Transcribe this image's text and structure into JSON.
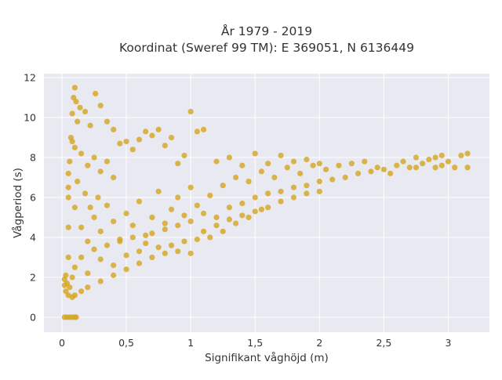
{
  "chart_data": {
    "type": "scatter",
    "title_line1": "År 1979 - 2019",
    "title_line2": "Koordinat (Sweref 99 TM): E 369051, N 6136449",
    "xlabel": "Signifikant våghöjd (m)",
    "ylabel": "Vågperiod (s)",
    "xlim": [
      -0.14,
      3.32
    ],
    "ylim": [
      -0.75,
      12.2
    ],
    "x_ticks": [
      0,
      0.5,
      1,
      1.5,
      2,
      2.5,
      3
    ],
    "x_tick_labels": [
      "0",
      "0,5",
      "1",
      "1,5",
      "2",
      "2,5",
      "3"
    ],
    "y_ticks": [
      0,
      2,
      4,
      6,
      8,
      10,
      12
    ],
    "y_tick_labels": [
      "0",
      "2",
      "4",
      "6",
      "8",
      "10",
      "12"
    ],
    "grid": true,
    "colors": {
      "background": "#e9e9f1",
      "grid": "#ffffff",
      "marker": "#d4a51f"
    },
    "series": [
      {
        "points": [
          [
            0.02,
            0
          ],
          [
            0.04,
            0
          ],
          [
            0.06,
            0
          ],
          [
            0.08,
            0
          ],
          [
            0.1,
            0
          ],
          [
            0.11,
            0
          ],
          [
            0.02,
            1.6
          ],
          [
            0.03,
            1.3
          ],
          [
            0.05,
            1.1
          ],
          [
            0.08,
            1.0
          ],
          [
            0.1,
            1.1
          ],
          [
            0.15,
            1.3
          ],
          [
            0.2,
            1.5
          ],
          [
            0.3,
            1.8
          ],
          [
            0.4,
            2.1
          ],
          [
            0.5,
            2.4
          ],
          [
            0.6,
            2.7
          ],
          [
            0.7,
            3.0
          ],
          [
            0.8,
            3.2
          ],
          [
            0.9,
            3.3
          ],
          [
            1.0,
            3.2
          ],
          [
            0.05,
            6.5
          ],
          [
            0.06,
            7.8
          ],
          [
            0.07,
            9.0
          ],
          [
            0.08,
            10.2
          ],
          [
            0.09,
            11.0
          ],
          [
            0.1,
            11.5
          ],
          [
            0.11,
            10.8
          ],
          [
            0.12,
            9.8
          ],
          [
            0.14,
            10.5
          ],
          [
            0.18,
            10.3
          ],
          [
            0.22,
            9.6
          ],
          [
            0.26,
            11.2
          ],
          [
            0.3,
            10.6
          ],
          [
            0.35,
            9.8
          ],
          [
            0.4,
            9.4
          ],
          [
            0.1,
            8.5
          ],
          [
            0.15,
            8.2
          ],
          [
            0.2,
            7.6
          ],
          [
            0.25,
            8.0
          ],
          [
            0.3,
            7.3
          ],
          [
            0.35,
            7.8
          ],
          [
            0.4,
            7.0
          ],
          [
            0.45,
            8.7
          ],
          [
            0.5,
            8.8
          ],
          [
            0.55,
            8.4
          ],
          [
            0.6,
            8.9
          ],
          [
            0.65,
            9.3
          ],
          [
            0.7,
            9.1
          ],
          [
            0.75,
            9.4
          ],
          [
            0.8,
            8.6
          ],
          [
            0.85,
            9.0
          ],
          [
            0.9,
            7.7
          ],
          [
            0.95,
            8.1
          ],
          [
            1.0,
            10.3
          ],
          [
            1.05,
            9.3
          ],
          [
            1.1,
            9.4
          ],
          [
            0.1,
            5.5
          ],
          [
            0.15,
            4.5
          ],
          [
            0.2,
            3.8
          ],
          [
            0.25,
            5.0
          ],
          [
            0.3,
            4.3
          ],
          [
            0.35,
            5.6
          ],
          [
            0.4,
            4.8
          ],
          [
            0.45,
            3.9
          ],
          [
            0.5,
            5.2
          ],
          [
            0.55,
            4.6
          ],
          [
            0.6,
            5.8
          ],
          [
            0.65,
            4.1
          ],
          [
            0.7,
            5.0
          ],
          [
            0.75,
            6.3
          ],
          [
            0.8,
            4.7
          ],
          [
            0.85,
            5.4
          ],
          [
            0.9,
            6.0
          ],
          [
            0.95,
            5.1
          ],
          [
            1.0,
            6.5
          ],
          [
            1.05,
            5.6
          ],
          [
            0.1,
            2.5
          ],
          [
            0.15,
            3.0
          ],
          [
            0.2,
            2.2
          ],
          [
            0.25,
            3.4
          ],
          [
            0.3,
            2.9
          ],
          [
            0.35,
            3.6
          ],
          [
            0.4,
            2.6
          ],
          [
            0.45,
            3.8
          ],
          [
            0.5,
            3.1
          ],
          [
            0.55,
            4.0
          ],
          [
            0.6,
            3.3
          ],
          [
            0.65,
            3.7
          ],
          [
            0.7,
            4.2
          ],
          [
            0.75,
            3.5
          ],
          [
            0.8,
            4.4
          ],
          [
            0.85,
            3.6
          ],
          [
            0.9,
            4.6
          ],
          [
            0.95,
            3.8
          ],
          [
            1.0,
            4.8
          ],
          [
            1.05,
            3.9
          ],
          [
            1.1,
            5.2
          ],
          [
            1.15,
            6.1
          ],
          [
            1.2,
            5.0
          ],
          [
            1.25,
            6.6
          ],
          [
            1.3,
            5.5
          ],
          [
            1.35,
            7.0
          ],
          [
            1.4,
            5.7
          ],
          [
            1.45,
            6.8
          ],
          [
            1.5,
            6.0
          ],
          [
            1.55,
            7.3
          ],
          [
            1.6,
            6.2
          ],
          [
            1.65,
            7.0
          ],
          [
            1.7,
            6.3
          ],
          [
            1.75,
            7.5
          ],
          [
            1.8,
            6.5
          ],
          [
            1.85,
            7.2
          ],
          [
            1.9,
            6.6
          ],
          [
            1.95,
            7.6
          ],
          [
            2.0,
            6.8
          ],
          [
            2.05,
            7.4
          ],
          [
            1.1,
            4.3
          ],
          [
            1.15,
            4.0
          ],
          [
            1.2,
            4.6
          ],
          [
            1.25,
            4.3
          ],
          [
            1.3,
            4.9
          ],
          [
            1.35,
            4.7
          ],
          [
            1.4,
            5.1
          ],
          [
            1.45,
            5.0
          ],
          [
            1.5,
            5.3
          ],
          [
            1.55,
            5.4
          ],
          [
            1.6,
            5.5
          ],
          [
            1.7,
            5.8
          ],
          [
            1.8,
            6.0
          ],
          [
            1.9,
            6.2
          ],
          [
            2.0,
            6.3
          ],
          [
            1.2,
            7.8
          ],
          [
            1.3,
            8.0
          ],
          [
            1.4,
            7.6
          ],
          [
            1.5,
            8.2
          ],
          [
            1.6,
            7.7
          ],
          [
            1.7,
            8.1
          ],
          [
            1.8,
            7.8
          ],
          [
            1.9,
            7.9
          ],
          [
            2.0,
            7.7
          ],
          [
            2.1,
            6.9
          ],
          [
            2.15,
            7.6
          ],
          [
            2.2,
            7.0
          ],
          [
            2.25,
            7.7
          ],
          [
            2.3,
            7.2
          ],
          [
            2.35,
            7.8
          ],
          [
            2.4,
            7.3
          ],
          [
            2.45,
            7.5
          ],
          [
            2.5,
            7.4
          ],
          [
            2.55,
            7.2
          ],
          [
            2.6,
            7.6
          ],
          [
            2.65,
            7.8
          ],
          [
            2.7,
            7.5
          ],
          [
            2.75,
            8.0
          ],
          [
            2.8,
            7.7
          ],
          [
            2.85,
            7.9
          ],
          [
            2.9,
            8.0
          ],
          [
            2.95,
            8.1
          ],
          [
            3.0,
            7.8
          ],
          [
            3.1,
            8.1
          ],
          [
            3.15,
            8.2
          ],
          [
            3.15,
            7.5
          ],
          [
            3.05,
            7.5
          ],
          [
            2.95,
            7.6
          ],
          [
            2.9,
            7.5
          ],
          [
            2.75,
            7.5
          ],
          [
            0.05,
            3.0
          ],
          [
            0.05,
            4.5
          ],
          [
            0.05,
            6.0
          ],
          [
            0.05,
            7.2
          ],
          [
            0.08,
            8.8
          ],
          [
            0.08,
            2.0
          ],
          [
            0.12,
            6.8
          ],
          [
            0.18,
            6.2
          ],
          [
            0.22,
            5.5
          ],
          [
            0.28,
            6.0
          ],
          [
            0.02,
            1.9
          ],
          [
            0.03,
            2.1
          ],
          [
            0.04,
            1.7
          ],
          [
            0.06,
            1.5
          ]
        ]
      }
    ]
  }
}
